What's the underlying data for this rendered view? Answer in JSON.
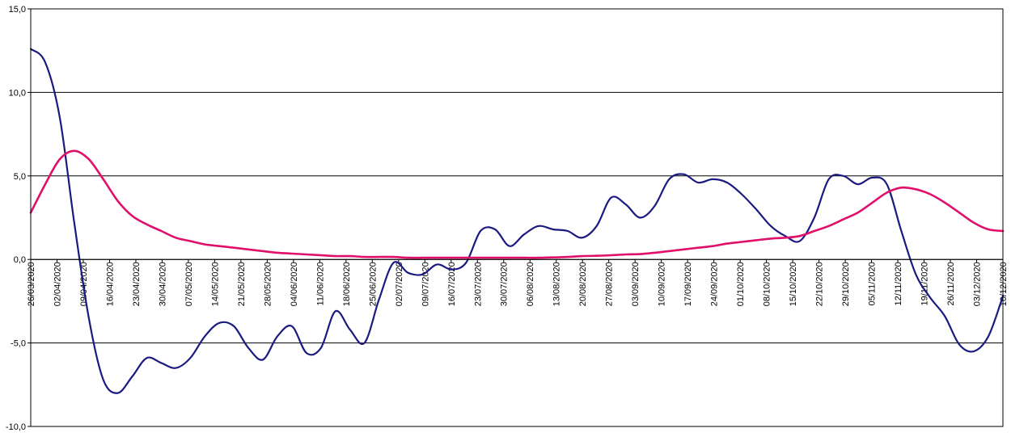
{
  "chart_data": {
    "type": "line",
    "title": "",
    "xlabel": "",
    "ylabel": "",
    "ylim": [
      -10,
      15
    ],
    "grid": "horizontal",
    "legend": "none",
    "y_ticks": [
      "15,0",
      "10,0",
      "5,0",
      "0,0",
      "-5,0",
      "-10,0"
    ],
    "y_tick_values": [
      15,
      10,
      5,
      0,
      -5,
      -10
    ],
    "x_ticks": [
      "26/03/2020",
      "02/04/2020",
      "09/04/2020",
      "16/04/2020",
      "23/04/2020",
      "30/04/2020",
      "07/05/2020",
      "14/05/2020",
      "21/05/2020",
      "28/05/2020",
      "04/06/2020",
      "11/06/2020",
      "18/06/2020",
      "25/06/2020",
      "02/07/2020",
      "09/07/2020",
      "16/07/2020",
      "23/07/2020",
      "30/07/2020",
      "06/08/2020",
      "13/08/2020",
      "20/08/2020",
      "27/08/2020",
      "03/09/2020",
      "10/09/2020",
      "17/09/2020",
      "24/09/2020",
      "01/10/2020",
      "08/10/2020",
      "15/10/2020",
      "22/10/2020",
      "29/10/2020",
      "05/11/2020",
      "12/11/2020",
      "19/11/2020",
      "26/11/2020",
      "03/12/2020",
      "10/12/2020"
    ],
    "series": [
      {
        "color": "#1a1a80",
        "values": [
          12.6,
          11.8,
          8.5,
          2.2,
          -3.5,
          -7.2,
          -8.0,
          -7.0,
          -5.9,
          -6.2,
          -6.5,
          -5.9,
          -4.6,
          -3.8,
          -4.0,
          -5.3,
          -6.0,
          -4.6,
          -4.0,
          -5.6,
          -5.3,
          -3.1,
          -4.2,
          -5.0,
          -2.4,
          -0.2,
          -0.8,
          -0.9,
          -0.3,
          -0.6,
          -0.2,
          1.7,
          1.8,
          0.8,
          1.5,
          2.0,
          1.8,
          1.7,
          1.3,
          2.0,
          3.7,
          3.3,
          2.5,
          3.2,
          4.8,
          5.1,
          4.6,
          4.8,
          4.6,
          3.9,
          3.0,
          2.0,
          1.4,
          1.1,
          2.5,
          4.8,
          5.0,
          4.5,
          4.9,
          4.5,
          1.7,
          -0.9,
          -2.3,
          -3.4,
          -5.1,
          -5.5,
          -4.6,
          -2.2
        ]
      },
      {
        "color": "#e0106a",
        "values": [
          2.8,
          4.5,
          6.0,
          6.5,
          6.0,
          4.8,
          3.5,
          2.6,
          2.1,
          1.7,
          1.3,
          1.1,
          0.9,
          0.8,
          0.7,
          0.6,
          0.5,
          0.4,
          0.35,
          0.3,
          0.25,
          0.2,
          0.2,
          0.15,
          0.15,
          0.15,
          0.1,
          0.1,
          0.1,
          0.1,
          0.1,
          0.1,
          0.1,
          0.1,
          0.1,
          0.1,
          0.12,
          0.15,
          0.2,
          0.22,
          0.25,
          0.3,
          0.32,
          0.4,
          0.5,
          0.6,
          0.7,
          0.8,
          0.95,
          1.05,
          1.15,
          1.25,
          1.3,
          1.4,
          1.7,
          2.0,
          2.4,
          2.8,
          3.4,
          4.0,
          4.3,
          4.2,
          3.9,
          3.4,
          2.8,
          2.2,
          1.8,
          1.7
        ]
      }
    ]
  }
}
